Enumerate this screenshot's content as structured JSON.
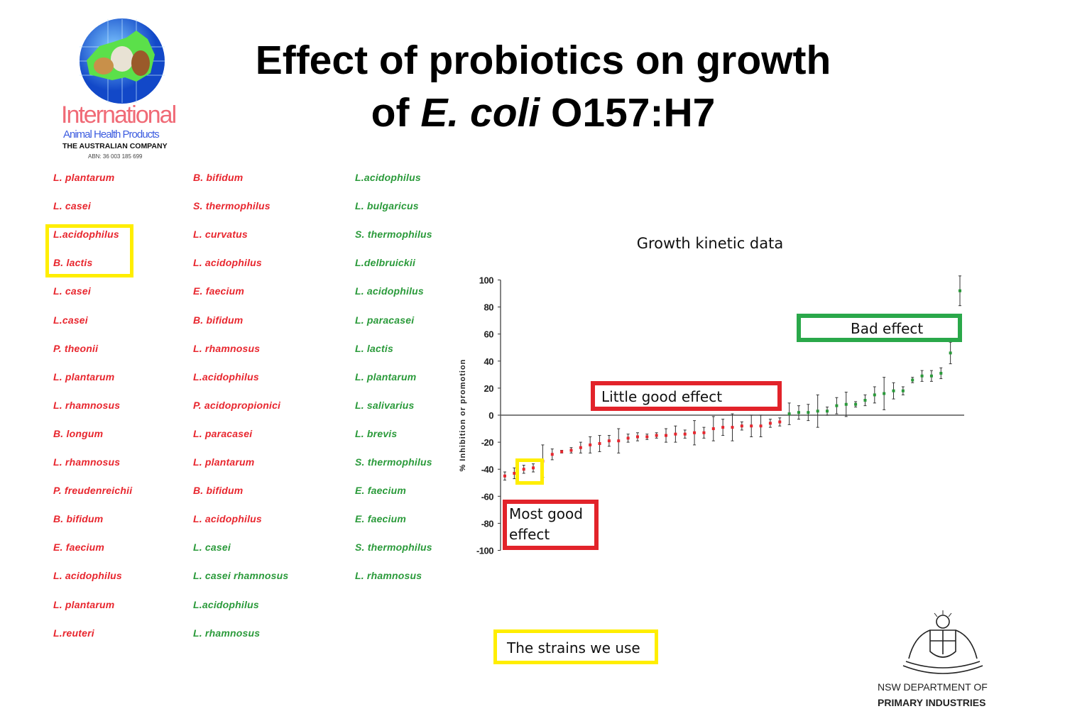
{
  "title": {
    "line1": "Effect of probiotics on growth",
    "line2_prefix": "of ",
    "line2_italic": "E. coli",
    "line2_suffix": " O157:H7"
  },
  "logo_left": {
    "name": "International",
    "sub": "Animal Health Products",
    "tagline": "THE AUSTRALIAN COMPANY",
    "abn": "ABN: 36 003 185 699"
  },
  "logo_right": {
    "line1": "NSW DEPARTMENT OF",
    "line2": "PRIMARY INDUSTRIES"
  },
  "colors": {
    "inhibition": "#e8262e",
    "promotion": "#2a9a3a",
    "highlight": "#ffee00",
    "bad": "#2aa84a",
    "good_box": "#e2232a"
  },
  "strains": [
    [
      {
        "name": "L. plantarum",
        "effect": "inhibition"
      },
      {
        "name": "L. casei",
        "effect": "inhibition"
      },
      {
        "name": "L.acidophilus",
        "effect": "inhibition"
      },
      {
        "name": "B. lactis",
        "effect": "inhibition"
      },
      {
        "name": "L. casei",
        "effect": "inhibition"
      },
      {
        "name": "L.casei",
        "effect": "inhibition"
      },
      {
        "name": "P. theonii",
        "effect": "inhibition"
      },
      {
        "name": "L. plantarum",
        "effect": "inhibition"
      },
      {
        "name": "L. rhamnosus",
        "effect": "inhibition"
      },
      {
        "name": "B. longum",
        "effect": "inhibition"
      },
      {
        "name": "L. rhamnosus",
        "effect": "inhibition"
      },
      {
        "name": "P. freudenreichii",
        "effect": "inhibition"
      },
      {
        "name": "B. bifidum",
        "effect": "inhibition"
      },
      {
        "name": "E. faecium",
        "effect": "inhibition"
      },
      {
        "name": "L. acidophilus",
        "effect": "inhibition"
      },
      {
        "name": "L. plantarum",
        "effect": "inhibition"
      },
      {
        "name": "L.reuteri",
        "effect": "inhibition"
      }
    ],
    [
      {
        "name": "B. bifidum",
        "effect": "inhibition"
      },
      {
        "name": "S. thermophilus",
        "effect": "inhibition"
      },
      {
        "name": "L. curvatus",
        "effect": "inhibition"
      },
      {
        "name": "L. acidophilus",
        "effect": "inhibition"
      },
      {
        "name": "E. faecium",
        "effect": "inhibition"
      },
      {
        "name": "B. bifidum",
        "effect": "inhibition"
      },
      {
        "name": "L. rhamnosus",
        "effect": "inhibition"
      },
      {
        "name": "L.acidophilus",
        "effect": "inhibition"
      },
      {
        "name": "P. acidopropionici",
        "effect": "inhibition"
      },
      {
        "name": "L. paracasei",
        "effect": "inhibition"
      },
      {
        "name": "L. plantarum",
        "effect": "inhibition"
      },
      {
        "name": "B. bifidum",
        "effect": "inhibition"
      },
      {
        "name": "L. acidophilus",
        "effect": "inhibition"
      },
      {
        "name": "L. casei",
        "effect": "promotion"
      },
      {
        "name": "L. casei rhamnosus",
        "effect": "promotion"
      },
      {
        "name": "L.acidophilus",
        "effect": "promotion"
      },
      {
        "name": "L. rhamnosus",
        "effect": "promotion"
      }
    ],
    [
      {
        "name": "L.acidophilus",
        "effect": "promotion"
      },
      {
        "name": "L. bulgaricus",
        "effect": "promotion"
      },
      {
        "name": "S. thermophilus",
        "effect": "promotion"
      },
      {
        "name": "L.delbruickii",
        "effect": "promotion"
      },
      {
        "name": "L. acidophilus",
        "effect": "promotion"
      },
      {
        "name": "L. paracasei",
        "effect": "promotion"
      },
      {
        "name": "L. lactis",
        "effect": "promotion"
      },
      {
        "name": "L. plantarum",
        "effect": "promotion"
      },
      {
        "name": "L. salivarius",
        "effect": "promotion"
      },
      {
        "name": "L. brevis",
        "effect": "promotion"
      },
      {
        "name": "S. thermophilus",
        "effect": "promotion"
      },
      {
        "name": "E. faecium",
        "effect": "promotion"
      },
      {
        "name": "E. faecium",
        "effect": "promotion"
      },
      {
        "name": "S. thermophilus",
        "effect": "promotion"
      },
      {
        "name": "L. rhamnosus",
        "effect": "promotion"
      }
    ]
  ],
  "annotations": {
    "bad": "Bad effect",
    "little_good": "Little good effect",
    "most_good": "Most good effect",
    "strains_we_use": "The strains we use"
  },
  "chart_data": {
    "type": "scatter",
    "title": "Growth kinetic data",
    "xlabel": "",
    "ylabel": "% Inhibition or promotion",
    "ylim": [
      -100,
      100
    ],
    "yticks": [
      "100",
      "80",
      "60",
      "40",
      "20",
      "0",
      "-20",
      "-40",
      "-60",
      "-80",
      "-100"
    ],
    "grid": false,
    "error_bars": true,
    "values": [
      -45,
      -43,
      -40,
      -39,
      -34,
      -29,
      -27,
      -26,
      -24,
      -22,
      -21,
      -19,
      -19,
      -17,
      -16,
      -16,
      -15,
      -15,
      -14,
      -14,
      -13,
      -13,
      -10,
      -9,
      -9,
      -8,
      -8,
      -8,
      -6,
      -5,
      1,
      2,
      2,
      3,
      3,
      7,
      8,
      8,
      11,
      15,
      16,
      18,
      18,
      26,
      29,
      29,
      31,
      46,
      92
    ],
    "errors": [
      3,
      4,
      3,
      3,
      12,
      4,
      1,
      2,
      4,
      6,
      6,
      4,
      9,
      3,
      3,
      2,
      2,
      5,
      6,
      3,
      9,
      4,
      9,
      6,
      10,
      3,
      8,
      8,
      3,
      3,
      8,
      5,
      6,
      12,
      3,
      6,
      9,
      2,
      4,
      6,
      12,
      6,
      3,
      2,
      4,
      4,
      4,
      8,
      11
    ],
    "highlighted_indices": [
      2,
      3
    ]
  }
}
